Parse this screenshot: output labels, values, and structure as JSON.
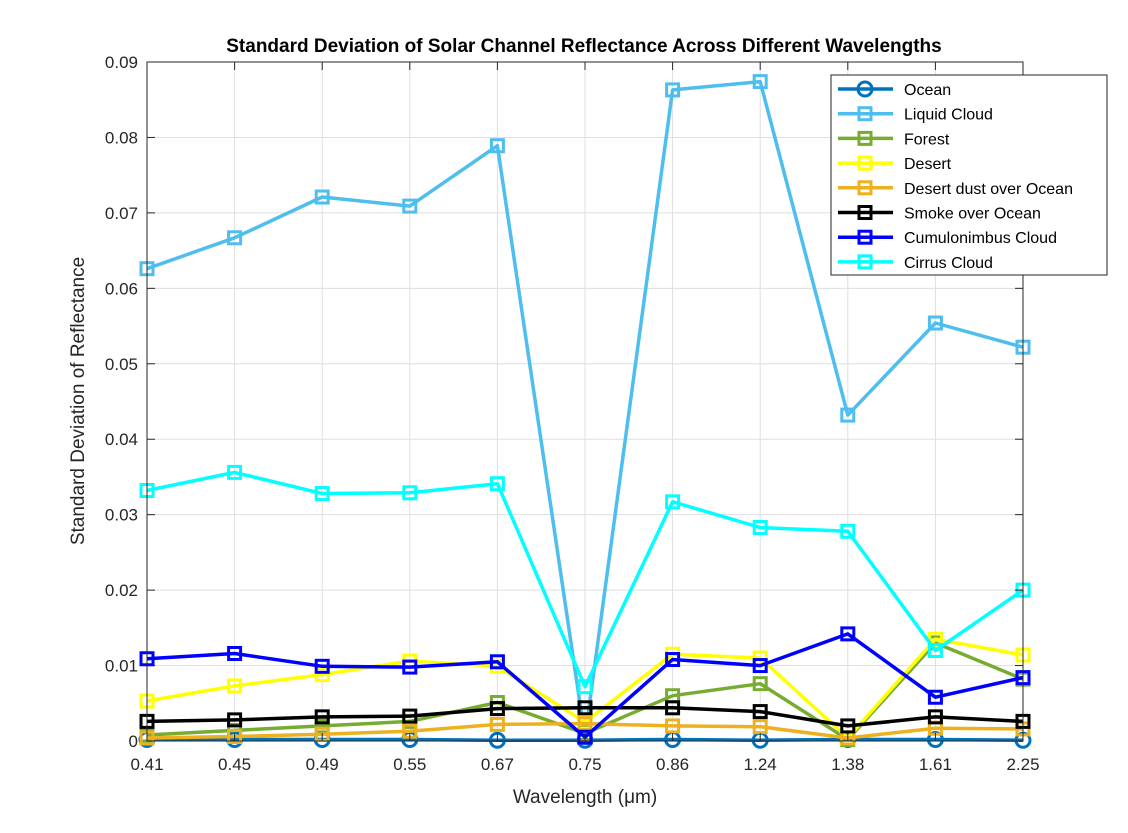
{
  "chart_data": {
    "type": "line",
    "title": "Standard Deviation of Solar Channel Reflectance Across Different Wavelengths",
    "xlabel": "Wavelength (μm)",
    "ylabel": "Standard Deviation of Reflectance",
    "categories": [
      "0.41",
      "0.45",
      "0.49",
      "0.55",
      "0.67",
      "0.75",
      "0.86",
      "1.24",
      "1.38",
      "1.61",
      "2.25"
    ],
    "ylim": [
      0,
      0.09
    ],
    "yticks": [
      "0",
      "0.01",
      "0.02",
      "0.03",
      "0.04",
      "0.05",
      "0.06",
      "0.07",
      "0.08",
      "0.09"
    ],
    "grid": true,
    "legend_position": "top-right",
    "series": [
      {
        "name": "Ocean",
        "color": "#0072BD",
        "marker": "circle",
        "values": [
          0.0002,
          0.0002,
          0.0002,
          0.0002,
          0.0001,
          0.0001,
          0.0002,
          0.0001,
          0.0002,
          0.0002,
          0.0001
        ]
      },
      {
        "name": "Liquid Cloud",
        "color": "#4DBEEE",
        "marker": "square",
        "values": [
          0.0626,
          0.0667,
          0.0721,
          0.0709,
          0.0789,
          0.0005,
          0.0863,
          0.0874,
          0.0432,
          0.0554,
          0.0522
        ]
      },
      {
        "name": "Forest",
        "color": "#77AC30",
        "marker": "square",
        "values": [
          0.0008,
          0.0014,
          0.002,
          0.0026,
          0.0051,
          0.001,
          0.006,
          0.0076,
          0.0002,
          0.013,
          0.0082
        ]
      },
      {
        "name": "Desert",
        "color": "#FFFF00",
        "marker": "square",
        "values": [
          0.0053,
          0.0073,
          0.0088,
          0.0106,
          0.0099,
          0.0025,
          0.0115,
          0.011,
          0.0004,
          0.0135,
          0.0114
        ]
      },
      {
        "name": "Desert dust over Ocean",
        "color": "#EDB120",
        "marker": "square",
        "values": [
          0.0004,
          0.0006,
          0.0009,
          0.0013,
          0.0022,
          0.0023,
          0.002,
          0.0019,
          0.0004,
          0.0017,
          0.0016
        ]
      },
      {
        "name": "Smoke over Ocean",
        "color": "#000000",
        "marker": "square",
        "values": [
          0.0026,
          0.0028,
          0.0032,
          0.0033,
          0.0043,
          0.0044,
          0.0044,
          0.0039,
          0.002,
          0.0032,
          0.0026
        ]
      },
      {
        "name": "Cumulonimbus Cloud",
        "color": "#0000FF",
        "marker": "square",
        "values": [
          0.0109,
          0.0116,
          0.0099,
          0.0098,
          0.0105,
          0.0005,
          0.0108,
          0.01,
          0.0142,
          0.0058,
          0.0084
        ]
      },
      {
        "name": "Cirrus Cloud",
        "color": "#00FFFF",
        "marker": "square",
        "values": [
          0.0332,
          0.0356,
          0.0328,
          0.0329,
          0.0341,
          0.0072,
          0.0317,
          0.0283,
          0.0278,
          0.012,
          0.02
        ]
      }
    ]
  }
}
